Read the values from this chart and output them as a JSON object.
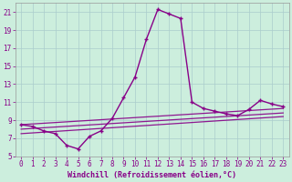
{
  "xlabel": "Windchill (Refroidissement éolien,°C)",
  "background_color": "#cceedd",
  "line_color": "#880088",
  "grid_color": "#aacccc",
  "xlim": [
    -0.5,
    23.5
  ],
  "ylim": [
    5,
    22
  ],
  "yticks": [
    5,
    7,
    9,
    11,
    13,
    15,
    17,
    19,
    21
  ],
  "xticks": [
    0,
    1,
    2,
    3,
    4,
    5,
    6,
    7,
    8,
    9,
    10,
    11,
    12,
    13,
    14,
    15,
    16,
    17,
    18,
    19,
    20,
    21,
    22,
    23
  ],
  "hours": [
    0,
    1,
    2,
    3,
    4,
    5,
    6,
    7,
    8,
    9,
    10,
    11,
    12,
    13,
    14,
    15,
    16,
    17,
    18,
    19,
    20,
    21,
    22,
    23
  ],
  "windchill": [
    8.5,
    8.3,
    7.8,
    7.5,
    6.2,
    5.8,
    7.2,
    7.8,
    9.2,
    11.5,
    13.8,
    18.0,
    21.3,
    20.8,
    20.3,
    11.0,
    10.3,
    10.0,
    9.7,
    9.5,
    10.2,
    11.2,
    10.8,
    10.5
  ],
  "line2_x": [
    0,
    23
  ],
  "line2_y": [
    8.5,
    10.3
  ],
  "line3_x": [
    0,
    23
  ],
  "line3_y": [
    8.0,
    9.8
  ],
  "line4_x": [
    0,
    23
  ],
  "line4_y": [
    7.5,
    9.4
  ],
  "xlabel_fontsize": 6,
  "tick_fontsize": 5.5
}
